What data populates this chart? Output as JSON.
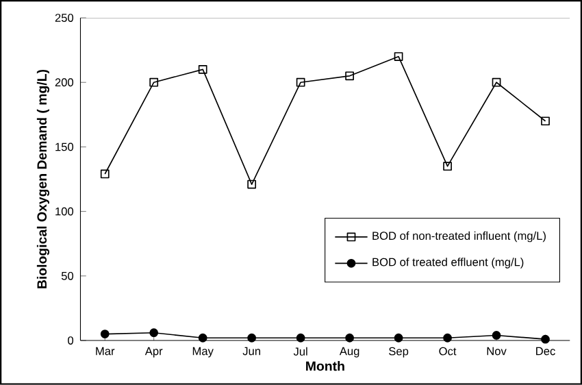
{
  "chart_data": {
    "type": "line",
    "xlabel": "Month",
    "ylabel": "Biological Oxygen Demand ( mg/L)",
    "categories": [
      "Mar",
      "Apr",
      "May",
      "Jun",
      "Jul",
      "Aug",
      "Sep",
      "Oct",
      "Nov",
      "Dec"
    ],
    "series": [
      {
        "name": "BOD of non-treated influent (mg/L)",
        "color": "#000000",
        "marker": "square",
        "values": [
          129,
          200,
          210,
          121,
          200,
          205,
          220,
          135,
          200,
          170
        ]
      },
      {
        "name": "BOD of treated effluent (mg/L)",
        "color": "#000000",
        "marker": "circle",
        "values": [
          5,
          6,
          2,
          2,
          2,
          2,
          2,
          2,
          4,
          1
        ]
      }
    ],
    "ylim": [
      0,
      250
    ],
    "yticks": [
      0,
      50,
      100,
      150,
      200,
      250
    ],
    "grid": false,
    "legend": "right",
    "line_style": "solid"
  }
}
